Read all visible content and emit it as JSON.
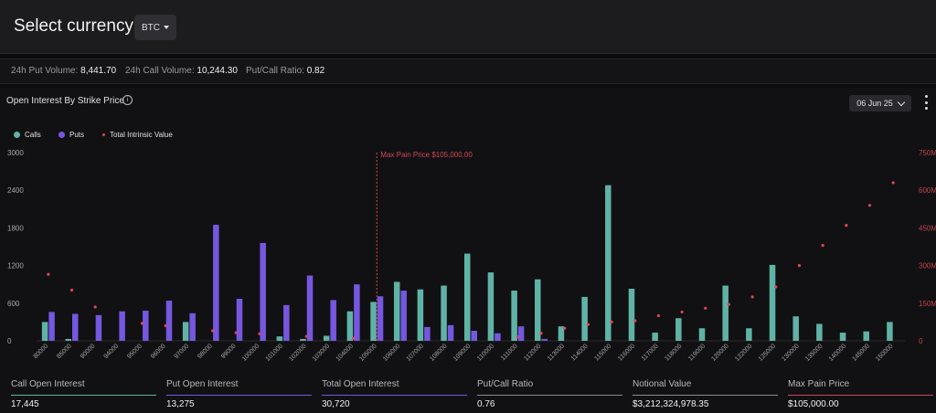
{
  "header": {
    "title": "Select currency:",
    "currency": "BTC"
  },
  "stats": {
    "put_volume_label": "24h Put Volume:",
    "put_volume": "8,441.70",
    "call_volume_label": "24h Call Volume:",
    "call_volume": "10,244.30",
    "ratio_label": "Put/Call Ratio:",
    "ratio": "0.82"
  },
  "panel": {
    "title": "Open Interest By Strike Price",
    "date": "06 Jun 25"
  },
  "legend": {
    "calls": "Calls",
    "puts": "Puts",
    "intrinsic": "Total Intrinsic Value"
  },
  "colors": {
    "calls": "#5fb3a6",
    "puts": "#7557e0",
    "intrinsic": "#e0455a",
    "max_pain": "#d0475a"
  },
  "chart_data": {
    "type": "bar",
    "categories": [
      "80000",
      "85000",
      "90000",
      "94000",
      "95000",
      "96000",
      "97000",
      "98000",
      "99000",
      "100000",
      "101000",
      "102000",
      "103000",
      "104000",
      "105000",
      "106000",
      "107000",
      "108000",
      "109000",
      "110000",
      "111000",
      "112000",
      "113000",
      "114000",
      "115000",
      "116000",
      "117000",
      "118000",
      "119000",
      "120000",
      "122000",
      "125000",
      "130000",
      "135000",
      "140000",
      "145000",
      "150000"
    ],
    "series": [
      {
        "name": "Calls",
        "values": [
          300,
          30,
          0,
          0,
          0,
          0,
          300,
          0,
          0,
          0,
          70,
          30,
          80,
          470,
          620,
          940,
          820,
          880,
          1390,
          1090,
          800,
          980,
          230,
          700,
          2480,
          830,
          130,
          360,
          200,
          880,
          200,
          1210,
          390,
          270,
          130,
          150,
          300
        ]
      },
      {
        "name": "Puts",
        "values": [
          460,
          430,
          410,
          470,
          480,
          640,
          440,
          1850,
          670,
          1560,
          570,
          1040,
          650,
          900,
          710,
          800,
          220,
          250,
          160,
          120,
          230,
          30,
          0,
          0,
          0,
          0,
          0,
          0,
          0,
          0,
          0,
          0,
          0,
          0,
          0,
          0,
          0
        ]
      }
    ],
    "intrinsic_values": [
      null,
      null,
      null,
      null,
      null,
      null,
      null,
      null,
      null,
      null,
      null,
      null,
      null,
      null,
      null,
      null,
      null,
      null,
      null,
      null,
      null,
      null,
      null,
      null,
      null,
      null,
      null,
      null,
      null,
      null,
      null,
      null,
      null,
      null,
      null,
      null,
      null
    ],
    "intrinsic_points": [
      265000000.0,
      202000000.0,
      135000000.0,
      null,
      70000000.0,
      60000000.0,
      null,
      40000000.0,
      32000000.0,
      28000000.0,
      null,
      18000000.0,
      null,
      10000000.0,
      null,
      null,
      null,
      null,
      null,
      null,
      15000000.0,
      30000000.0,
      50000000.0,
      65000000.0,
      75000000.0,
      80000000.0,
      100000000.0,
      115000000.0,
      130000000.0,
      145000000.0,
      175000000.0,
      215000000.0,
      300000000.0,
      380000000.0,
      460000000.0,
      540000000.0,
      630000000.0
    ],
    "left_axis": {
      "ticks": [
        "0",
        "600",
        "1200",
        "1800",
        "2400",
        "3000"
      ],
      "ylim": [
        0,
        3000
      ]
    },
    "right_axis": {
      "ticks": [
        "0",
        "150M",
        "300M",
        "450M",
        "600M",
        "750M"
      ],
      "ylim": [
        0,
        750000000
      ]
    },
    "max_pain": {
      "label": "Max Pain Price $105,000.00",
      "category": "105000"
    }
  },
  "summary": [
    {
      "label": "Call Open Interest",
      "value": "17,445",
      "color": "#5fb3a6"
    },
    {
      "label": "Put Open Interest",
      "value": "13,275",
      "color": "#7557e0"
    },
    {
      "label": "Total Open Interest",
      "value": "30,720",
      "color": "#7557e0"
    },
    {
      "label": "Put/Call Ratio",
      "value": "0.76",
      "color": "#8a8a8f"
    },
    {
      "label": "Notional Value",
      "value": "$3,212,324,978.35",
      "color": "#8a8a8f"
    },
    {
      "label": "Max Pain Price",
      "value": "$105,000.00",
      "color": "#d0475a"
    }
  ]
}
